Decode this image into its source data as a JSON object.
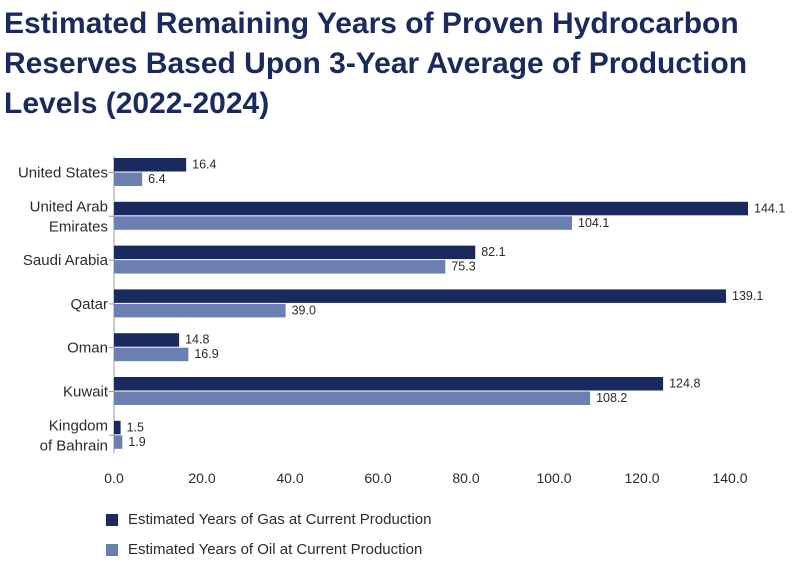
{
  "title": "Estimated Remaining Years of Proven Hydrocarbon Reserves Based Upon 3-Year Average of Production Levels (2022-2024)",
  "colors": {
    "gas": "#1b2a5e",
    "oil": "#6b7fb0",
    "axis": "#9a9a9a"
  },
  "chart_data": {
    "type": "bar",
    "orientation": "horizontal",
    "categories": [
      [
        "United States"
      ],
      [
        "United Arab",
        "Emirates"
      ],
      [
        "Saudi Arabia"
      ],
      [
        "Qatar"
      ],
      [
        "Oman"
      ],
      [
        "Kuwait"
      ],
      [
        "Kingdom",
        "of Bahrain"
      ]
    ],
    "series": [
      {
        "name": "Estimated Years of Gas at Current Production",
        "values": [
          16.4,
          144.1,
          82.1,
          139.1,
          14.8,
          124.8,
          1.5
        ],
        "labels": [
          "16.4",
          "144.1",
          "82.1",
          "139.1",
          "14.8",
          "124.8",
          "1.5"
        ]
      },
      {
        "name": "Estimated Years of Oil at Current Production",
        "values": [
          6.4,
          104.1,
          75.3,
          39.0,
          16.9,
          108.2,
          1.9
        ],
        "labels": [
          "6.4",
          "104.1",
          "75.3",
          "39.0",
          "16.9",
          "108.2",
          "1.9"
        ]
      }
    ],
    "xlim": [
      0,
      140
    ],
    "xticks": [
      0,
      20,
      40,
      60,
      80,
      100,
      120,
      140
    ],
    "xtick_labels": [
      "0.0",
      "20.0",
      "40.0",
      "60.0",
      "80.0",
      "100.0",
      "120.0",
      "140.0"
    ],
    "grid": false,
    "legend_position": "bottom-left"
  }
}
